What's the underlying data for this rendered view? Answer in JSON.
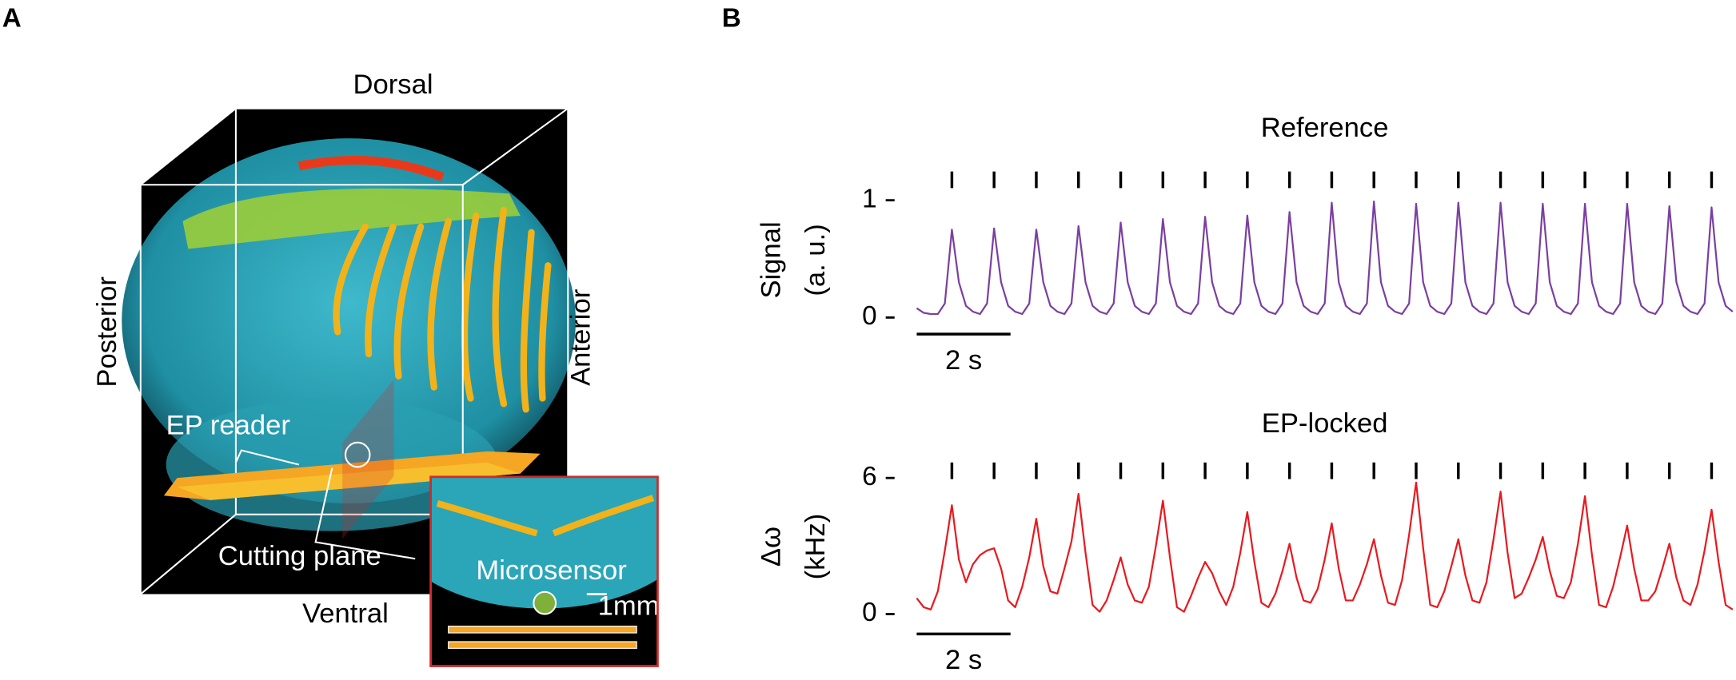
{
  "panel_labels": [
    "A",
    "B"
  ],
  "panel_a": {
    "dorsal": "Dorsal",
    "posterior": "Posterior",
    "anterior": "Anterior",
    "ventral": "Ventral",
    "ep_reader": "EP reader",
    "cutting_plane": "Cutting plane",
    "microsensor": "Microsensor",
    "scale": "1mm"
  },
  "chart_data": [
    {
      "type": "line",
      "title": "Reference",
      "ylabel": [
        "Signal",
        "(a. u.)"
      ],
      "color": "#7b3fa0",
      "x": [
        0,
        0.15,
        0.3,
        0.45,
        0.6,
        0.75,
        0.9,
        1.05,
        1.2,
        1.35,
        1.5,
        1.65,
        1.8,
        1.95,
        2.1,
        2.25,
        2.4,
        2.55,
        2.7,
        2.85,
        3,
        3.15,
        3.3,
        3.45,
        3.6,
        3.75,
        3.9,
        4.05,
        4.2,
        4.35,
        4.5,
        4.65,
        4.8,
        4.95,
        5.1,
        5.25,
        5.4,
        5.55,
        5.7,
        5.85,
        6,
        6.15,
        6.3,
        6.45,
        6.6,
        6.75,
        6.9,
        7.05,
        7.2,
        7.35,
        7.5,
        7.65,
        7.8,
        7.95,
        8.1,
        8.25,
        8.4,
        8.55,
        8.7,
        8.85,
        9,
        9.15,
        9.3,
        9.45,
        9.6,
        9.75,
        9.9,
        10.05,
        10.2,
        10.35,
        10.5,
        10.65,
        10.8,
        10.95,
        11.1,
        11.25,
        11.4,
        11.55,
        11.7,
        11.85,
        12,
        12.15,
        12.3,
        12.45,
        12.6,
        12.75,
        12.9,
        13.05,
        13.2,
        13.35,
        13.5,
        13.65,
        13.8,
        13.95,
        14.1,
        14.25,
        14.4,
        14.55,
        14.7,
        14.85,
        15,
        15.15,
        15.3,
        15.45,
        15.6,
        15.75,
        15.9,
        16.05,
        16.2,
        16.35,
        16.5,
        16.65,
        16.8,
        16.95,
        17.1,
        17.25,
        17.4
      ],
      "values": [
        0.08,
        0.04,
        0.03,
        0.03,
        0.12,
        0.75,
        0.3,
        0.1,
        0.05,
        0.03,
        0.12,
        0.76,
        0.3,
        0.1,
        0.05,
        0.03,
        0.12,
        0.75,
        0.3,
        0.1,
        0.05,
        0.03,
        0.12,
        0.78,
        0.3,
        0.1,
        0.05,
        0.03,
        0.12,
        0.81,
        0.3,
        0.1,
        0.05,
        0.03,
        0.12,
        0.84,
        0.3,
        0.1,
        0.05,
        0.03,
        0.12,
        0.86,
        0.3,
        0.1,
        0.05,
        0.03,
        0.12,
        0.87,
        0.3,
        0.1,
        0.05,
        0.03,
        0.12,
        0.9,
        0.3,
        0.1,
        0.05,
        0.03,
        0.12,
        0.98,
        0.3,
        0.1,
        0.05,
        0.03,
        0.12,
        0.99,
        0.3,
        0.1,
        0.05,
        0.03,
        0.12,
        0.97,
        0.3,
        0.1,
        0.05,
        0.03,
        0.12,
        0.98,
        0.3,
        0.1,
        0.05,
        0.03,
        0.12,
        0.98,
        0.3,
        0.1,
        0.05,
        0.03,
        0.12,
        0.97,
        0.3,
        0.1,
        0.05,
        0.03,
        0.12,
        0.97,
        0.3,
        0.1,
        0.05,
        0.03,
        0.12,
        0.97,
        0.3,
        0.1,
        0.05,
        0.03,
        0.12,
        0.95,
        0.3,
        0.1,
        0.05,
        0.03,
        0.12,
        0.94,
        0.3,
        0.1,
        0.05
      ],
      "xlim": [
        0,
        17.4
      ],
      "ylim": [
        0,
        1
      ],
      "yticks": [
        0,
        1
      ],
      "events": [
        0.75,
        1.65,
        2.55,
        3.45,
        4.35,
        5.25,
        6.15,
        7.05,
        7.95,
        8.85,
        9.75,
        10.65,
        11.55,
        12.45,
        13.35,
        14.25,
        15.15,
        16.05,
        16.95
      ],
      "scale_bar": {
        "label": "2 s",
        "length": 2
      }
    },
    {
      "type": "line",
      "title": "EP-locked",
      "ylabel": [
        "Δω",
        "(kHz)"
      ],
      "color": "#e8191f",
      "x": [
        0,
        0.15,
        0.3,
        0.45,
        0.6,
        0.75,
        0.9,
        1.05,
        1.2,
        1.35,
        1.5,
        1.65,
        1.8,
        1.95,
        2.1,
        2.25,
        2.4,
        2.55,
        2.7,
        2.85,
        3,
        3.15,
        3.3,
        3.45,
        3.6,
        3.75,
        3.9,
        4.05,
        4.2,
        4.35,
        4.5,
        4.65,
        4.8,
        4.95,
        5.1,
        5.25,
        5.4,
        5.55,
        5.7,
        5.85,
        6,
        6.15,
        6.3,
        6.45,
        6.6,
        6.75,
        6.9,
        7.05,
        7.2,
        7.35,
        7.5,
        7.65,
        7.8,
        7.95,
        8.1,
        8.25,
        8.4,
        8.55,
        8.7,
        8.85,
        9,
        9.15,
        9.3,
        9.45,
        9.6,
        9.75,
        9.9,
        10.05,
        10.2,
        10.35,
        10.5,
        10.65,
        10.8,
        10.95,
        11.1,
        11.25,
        11.4,
        11.55,
        11.7,
        11.85,
        12,
        12.15,
        12.3,
        12.45,
        12.6,
        12.75,
        12.9,
        13.05,
        13.2,
        13.35,
        13.5,
        13.65,
        13.8,
        13.95,
        14.1,
        14.25,
        14.4,
        14.55,
        14.7,
        14.85,
        15,
        15.15,
        15.3,
        15.45,
        15.6,
        15.75,
        15.9,
        16.05,
        16.2,
        16.35,
        16.5,
        16.65,
        16.8,
        16.95,
        17.1,
        17.25,
        17.4
      ],
      "values": [
        0.7,
        0.3,
        0.2,
        1.0,
        2.8,
        4.8,
        2.4,
        1.4,
        2.2,
        2.6,
        2.8,
        2.9,
        2.0,
        0.6,
        0.3,
        1.2,
        2.5,
        4.2,
        2.1,
        1.0,
        0.9,
        2.0,
        3.2,
        5.3,
        2.7,
        0.4,
        0.1,
        0.6,
        1.5,
        2.5,
        1.3,
        0.6,
        0.5,
        1.2,
        3.0,
        5.0,
        2.5,
        0.3,
        0.1,
        0.8,
        1.6,
        2.3,
        1.8,
        1.0,
        0.4,
        1.2,
        2.7,
        4.5,
        2.3,
        0.5,
        0.3,
        0.9,
        1.9,
        3.1,
        1.6,
        0.6,
        0.5,
        1.1,
        2.4,
        4.0,
        2.0,
        0.6,
        0.6,
        1.3,
        2.2,
        3.3,
        1.7,
        0.5,
        0.4,
        1.5,
        3.5,
        5.8,
        2.9,
        0.4,
        0.3,
        1.0,
        2.1,
        3.3,
        1.7,
        0.6,
        0.5,
        1.4,
        3.3,
        5.4,
        2.7,
        0.7,
        0.9,
        1.6,
        2.4,
        3.4,
        1.9,
        0.8,
        0.7,
        1.4,
        3.1,
        5.2,
        2.6,
        0.4,
        0.3,
        1.2,
        2.5,
        3.9,
        2.0,
        0.6,
        0.6,
        1.0,
        2.0,
        3.1,
        1.6,
        0.6,
        0.4,
        1.3,
        2.8,
        4.6,
        2.3,
        0.4,
        0.2
      ],
      "xlim": [
        0,
        17.4
      ],
      "ylim": [
        0,
        6
      ],
      "yticks": [
        0,
        6
      ],
      "events": [
        0.75,
        1.65,
        2.55,
        3.45,
        4.35,
        5.25,
        6.15,
        7.05,
        7.95,
        8.85,
        9.75,
        10.65,
        11.55,
        12.45,
        13.35,
        14.25,
        15.15,
        16.05,
        16.95
      ],
      "scale_bar": {
        "label": "2 s",
        "length": 2
      }
    }
  ]
}
